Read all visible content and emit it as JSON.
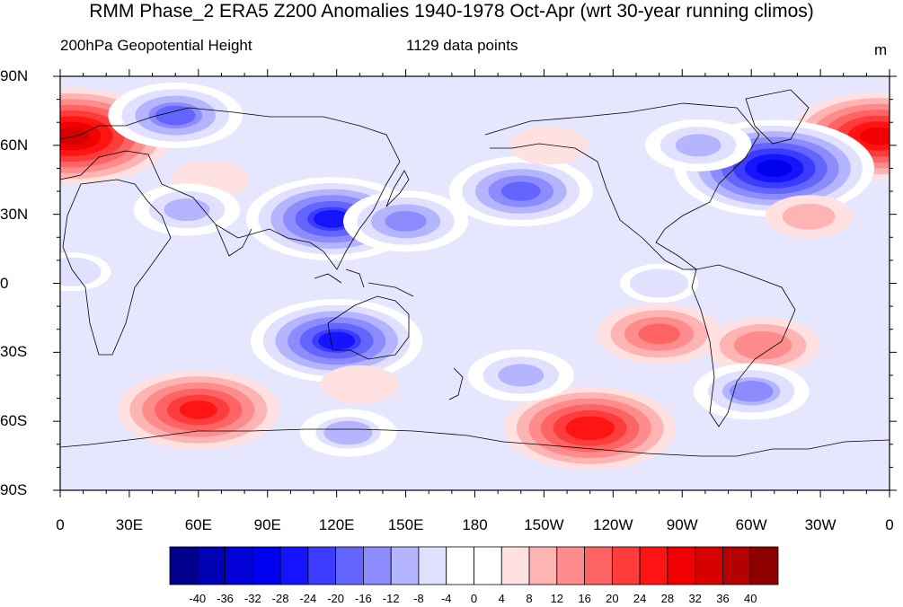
{
  "title": "RMM Phase_2 ERA5 Z200 Anomalies 1940-1978 Oct-Apr (wrt 30-year running climos)",
  "subtitle_left": "200hPa Geopotential Height",
  "subtitle_center": "1129 data points",
  "units": "m",
  "lat_labels": [
    "90N",
    "60N",
    "30N",
    "0",
    "30S",
    "60S",
    "90S"
  ],
  "lon_labels": [
    "0",
    "30E",
    "60E",
    "90E",
    "120E",
    "150E",
    "180",
    "150W",
    "120W",
    "90W",
    "60W",
    "30W",
    "0"
  ],
  "colorbar": {
    "labels": [
      "-40",
      "-36",
      "-32",
      "-28",
      "-24",
      "-20",
      "-16",
      "-12",
      "-8",
      "-4",
      "0",
      "4",
      "8",
      "12",
      "16",
      "20",
      "24",
      "28",
      "32",
      "36",
      "40"
    ],
    "colors": [
      "#00008c",
      "#0000b4",
      "#0000d7",
      "#0000f0",
      "#1414ff",
      "#3c3cff",
      "#6464ff",
      "#8c8cff",
      "#b4b4ff",
      "#e1e1ff",
      "#ffffff",
      "#ffffff",
      "#ffe1e1",
      "#ffb4b4",
      "#ff8c8c",
      "#ff6464",
      "#ff3c3c",
      "#ff1414",
      "#f00000",
      "#d70000",
      "#b40000",
      "#8c0000"
    ]
  },
  "map_data": {
    "type": "contour-fill-map",
    "field": "Z200 anomaly",
    "lon_range": [
      0,
      360
    ],
    "lat_range": [
      -90,
      90
    ],
    "anomaly_centers": [
      {
        "lon": 5,
        "lat": 64,
        "value": 32
      },
      {
        "lon": 355,
        "lat": 64,
        "value": 28
      },
      {
        "lon": 50,
        "lat": 73,
        "value": -18
      },
      {
        "lon": 65,
        "lat": 45,
        "value": 6
      },
      {
        "lon": 55,
        "lat": 32,
        "value": -12
      },
      {
        "lon": 118,
        "lat": 28,
        "value": -26
      },
      {
        "lon": 150,
        "lat": 27,
        "value": -16
      },
      {
        "lon": 120,
        "lat": -25,
        "value": -26
      },
      {
        "lon": 200,
        "lat": 40,
        "value": -20
      },
      {
        "lon": 212,
        "lat": 60,
        "value": 6
      },
      {
        "lon": 310,
        "lat": 50,
        "value": -32
      },
      {
        "lon": 277,
        "lat": 60,
        "value": -12
      },
      {
        "lon": 325,
        "lat": 29,
        "value": 8
      },
      {
        "lon": 60,
        "lat": -55,
        "value": 24
      },
      {
        "lon": 125,
        "lat": -65,
        "value": -10
      },
      {
        "lon": 130,
        "lat": -44,
        "value": 6
      },
      {
        "lon": 230,
        "lat": -63,
        "value": 26
      },
      {
        "lon": 260,
        "lat": -22,
        "value": 16
      },
      {
        "lon": 305,
        "lat": -27,
        "value": 14
      },
      {
        "lon": 300,
        "lat": -47,
        "value": -14
      },
      {
        "lon": 200,
        "lat": -40,
        "value": -12
      },
      {
        "lon": 5,
        "lat": 5,
        "value": -6
      },
      {
        "lon": 260,
        "lat": 0,
        "value": -6
      }
    ]
  }
}
